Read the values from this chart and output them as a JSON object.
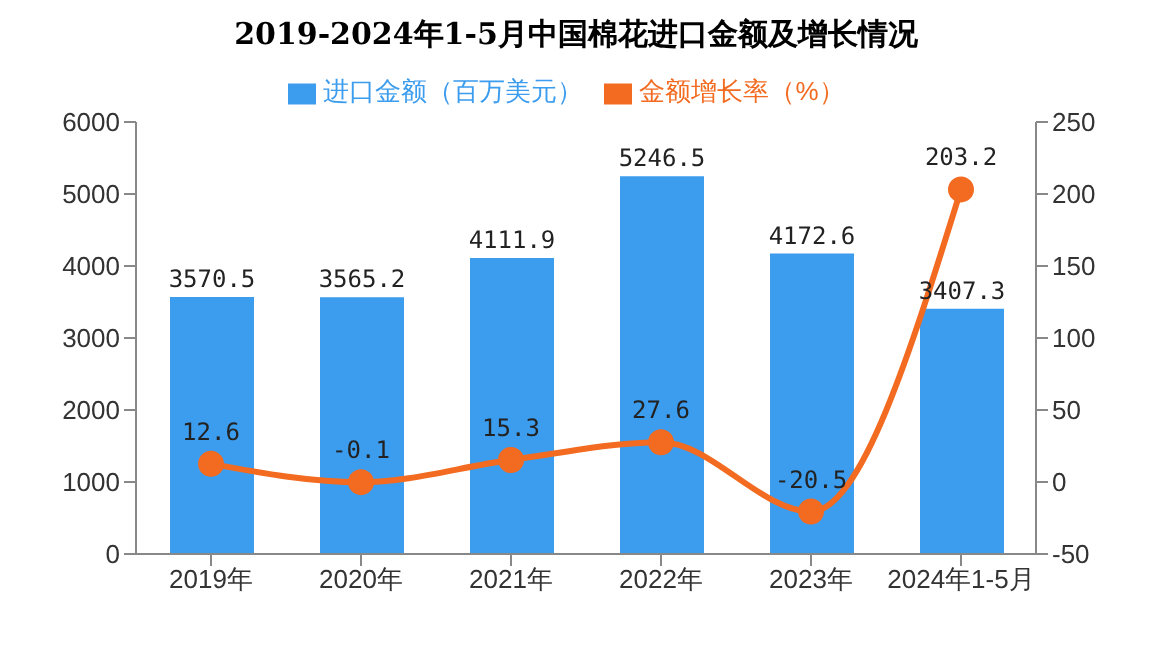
{
  "chart_data": {
    "type": "bar",
    "title": "2019-2024年1-5月中国棉花进口金额及增长情况",
    "categories": [
      "2019年",
      "2020年",
      "2021年",
      "2022年",
      "2023年",
      "2024年1-5月"
    ],
    "series": [
      {
        "name": "进口金额（百万美元）",
        "color": "#3c9cee",
        "values": [
          3570.5,
          3565.2,
          4111.9,
          5246.5,
          4172.6,
          3407.3
        ]
      },
      {
        "name": "金额增长率（%）",
        "type": "line",
        "axis": "y2",
        "color": "#f26b21",
        "marker": "circle",
        "values": [
          12.6,
          -0.1,
          15.3,
          27.6,
          -20.5,
          203.2
        ]
      }
    ],
    "ylim": [
      0,
      6000
    ],
    "yticks": [
      0,
      1000,
      2000,
      3000,
      4000,
      5000,
      6000
    ],
    "y2lim": [
      -50,
      250
    ],
    "y2ticks": [
      -50,
      0,
      50,
      100,
      150,
      200,
      250
    ],
    "data_labels": true,
    "grid": false,
    "legend": "top"
  }
}
